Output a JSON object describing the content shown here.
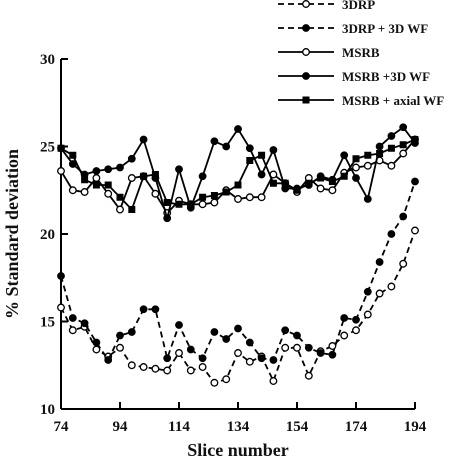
{
  "chart_data": {
    "type": "line",
    "title": "",
    "xlabel": "Slice number",
    "ylabel": "% Standard deviation",
    "xlim": [
      74,
      194
    ],
    "ylim": [
      10,
      30
    ],
    "xticks": [
      74,
      94,
      114,
      134,
      154,
      174,
      194
    ],
    "xtick_labels": [
      "74",
      "94",
      "114",
      "134",
      "154",
      "174",
      "194"
    ],
    "yticks": [
      10,
      15,
      20,
      25,
      30
    ],
    "ytick_labels": [
      "10",
      "15",
      "20",
      "25",
      "30"
    ],
    "grid": false,
    "legend_position": "top-right",
    "x": [
      74,
      78,
      82,
      86,
      90,
      94,
      98,
      102,
      106,
      110,
      114,
      118,
      122,
      126,
      130,
      134,
      138,
      142,
      146,
      150,
      154,
      158,
      162,
      166,
      170,
      174,
      178,
      182,
      186,
      190,
      194
    ],
    "series": [
      {
        "name": "3DRP",
        "line": "dashed",
        "marker": "open-circle",
        "values": [
          15.8,
          14.5,
          14.7,
          13.4,
          13.0,
          13.5,
          12.5,
          12.4,
          12.3,
          12.2,
          13.2,
          12.2,
          12.4,
          11.5,
          11.7,
          13.2,
          12.7,
          13.0,
          11.6,
          13.5,
          13.5,
          11.9,
          13.3,
          13.6,
          14.2,
          14.5,
          15.4,
          16.6,
          17.0,
          18.3,
          20.2
        ]
      },
      {
        "name": "3DRP + 3D WF",
        "line": "dashed",
        "marker": "filled-circle",
        "values": [
          17.6,
          15.2,
          14.9,
          13.8,
          12.8,
          14.2,
          14.4,
          15.7,
          15.7,
          12.9,
          14.8,
          13.4,
          12.9,
          14.4,
          14.0,
          14.6,
          13.8,
          12.9,
          12.8,
          14.5,
          14.2,
          13.5,
          13.2,
          13.1,
          15.2,
          15.1,
          16.7,
          18.4,
          20.0,
          21.0,
          23.0
        ]
      },
      {
        "name": "MSRB",
        "line": "solid",
        "marker": "open-circle",
        "values": [
          23.6,
          22.5,
          22.4,
          23.2,
          22.3,
          21.4,
          23.2,
          23.3,
          22.3,
          21.2,
          21.9,
          21.7,
          21.7,
          21.8,
          22.5,
          22.0,
          22.1,
          22.1,
          23.4,
          22.9,
          22.4,
          23.2,
          22.6,
          22.5,
          23.5,
          23.8,
          23.9,
          24.2,
          23.9,
          24.6,
          25.4
        ]
      },
      {
        "name": "MSRB +3D WF",
        "line": "solid",
        "marker": "filled-circle",
        "values": [
          24.9,
          24.0,
          23.4,
          23.6,
          23.7,
          23.8,
          24.3,
          25.4,
          23.2,
          20.9,
          23.7,
          21.5,
          23.3,
          25.3,
          25.0,
          26.0,
          24.9,
          23.4,
          24.8,
          22.6,
          22.6,
          22.8,
          23.3,
          23.1,
          24.5,
          23.2,
          22.0,
          25.0,
          25.6,
          26.1,
          25.2
        ]
      },
      {
        "name": "MSRB + axial WF",
        "line": "solid",
        "marker": "filled-square",
        "values": [
          24.9,
          24.5,
          23.1,
          22.8,
          22.8,
          22.1,
          21.4,
          23.3,
          23.4,
          21.8,
          21.7,
          21.7,
          22.1,
          22.2,
          22.4,
          22.8,
          24.2,
          24.5,
          22.9,
          22.9,
          22.5,
          22.9,
          23.2,
          23.0,
          23.3,
          24.3,
          24.5,
          24.6,
          24.9,
          25.1,
          25.4
        ]
      }
    ]
  }
}
